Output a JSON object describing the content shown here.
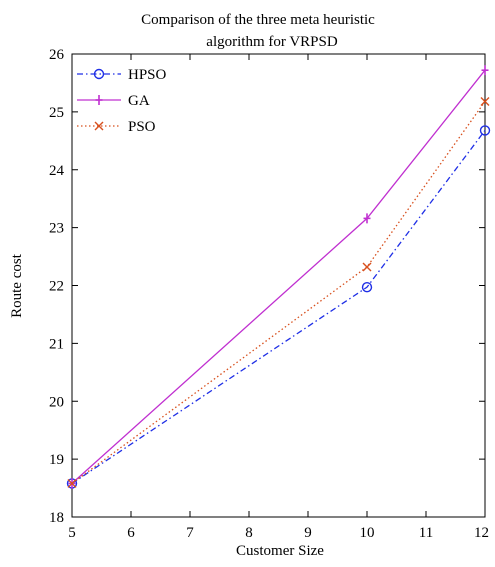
{
  "chart_data": {
    "type": "line",
    "title_lines": [
      "Comparison of the three meta heuristic",
      "algorithm for VRPSD"
    ],
    "xlabel": "Customer Size",
    "ylabel": "Route cost",
    "xlim": [
      5,
      12
    ],
    "ylim": [
      18,
      26
    ],
    "xticks": [
      "5",
      "6",
      "7",
      "8",
      "9",
      "10",
      "11",
      "12"
    ],
    "yticks": [
      "18",
      "19",
      "20",
      "21",
      "22",
      "23",
      "24",
      "25",
      "26"
    ],
    "x": [
      5,
      10,
      12
    ],
    "series": [
      {
        "name": "HPSO",
        "values": [
          18.58,
          21.97,
          24.68
        ],
        "color": "#1f2fe6",
        "style": "dash-dot",
        "marker": "circle"
      },
      {
        "name": "GA",
        "values": [
          18.58,
          23.16,
          25.72
        ],
        "color": "#c030d0",
        "style": "solid",
        "marker": "plus"
      },
      {
        "name": "PSO",
        "values": [
          18.58,
          22.32,
          25.18
        ],
        "color": "#d8501e",
        "style": "dotted",
        "marker": "x"
      }
    ],
    "legend_position": "top-left",
    "grid": false
  }
}
